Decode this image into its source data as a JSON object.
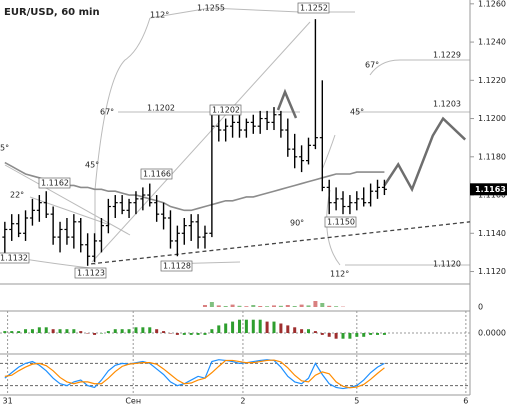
{
  "chart_data": {
    "type": "ohlc",
    "title": "EUR/USD, 60 min",
    "xlim": [
      -0.7,
      67.4
    ],
    "xticks": [
      {
        "value": 0.4,
        "label": "31"
      },
      {
        "value": 18.6,
        "label": "Сен"
      },
      {
        "value": 34.5,
        "label": "2"
      },
      {
        "value": 51,
        "label": "5"
      },
      {
        "value": 66.8,
        "label": "6"
      }
    ],
    "ylim": [
      1.1114,
      1.1262
    ],
    "yticks": [
      {
        "value": 1.126,
        "label": "1.1260"
      },
      {
        "value": 1.124,
        "label": "1.1240"
      },
      {
        "value": 1.122,
        "label": "1.1220"
      },
      {
        "value": 1.12,
        "label": "1.1200"
      },
      {
        "value": 1.118,
        "label": "1.1180"
      },
      {
        "value": 1.116,
        "label": "1.1160"
      },
      {
        "value": 1.114,
        "label": "1.1140"
      },
      {
        "value": 1.112,
        "label": "1.1120"
      }
    ],
    "open": [
      1.1138,
      1.1142,
      1.1145,
      1.114,
      1.1148,
      1.1152,
      1.1156,
      1.115,
      1.1138,
      1.1142,
      1.1138,
      1.1146,
      1.1134,
      1.1128,
      1.1136,
      1.1144,
      1.1154,
      1.1156,
      1.1152,
      1.1156,
      1.1158,
      1.116,
      1.1156,
      1.115,
      1.1148,
      1.1136,
      1.114,
      1.1144,
      1.1146,
      1.1138,
      1.114,
      1.1196,
      1.1194,
      1.1196,
      1.1198,
      1.1194,
      1.1198,
      1.1196,
      1.12,
      1.1198,
      1.1202,
      1.1194,
      1.1184,
      1.118,
      1.1178,
      1.1186,
      1.119,
      1.1164,
      1.1156,
      1.1158,
      1.1154,
      1.1156,
      1.1158,
      1.1156,
      1.1162,
      1.1164
    ],
    "high": [
      1.1146,
      1.115,
      1.115,
      1.1152,
      1.1158,
      1.116,
      1.1162,
      1.1154,
      1.1146,
      1.1148,
      1.115,
      1.1148,
      1.114,
      1.114,
      1.1148,
      1.1158,
      1.116,
      1.116,
      1.1158,
      1.1162,
      1.1164,
      1.1166,
      1.116,
      1.1156,
      1.1152,
      1.1144,
      1.1148,
      1.115,
      1.115,
      1.1144,
      1.1202,
      1.1202,
      1.12,
      1.1202,
      1.1202,
      1.12,
      1.1202,
      1.1204,
      1.1204,
      1.1206,
      1.1204,
      1.12,
      1.1192,
      1.1186,
      1.119,
      1.1252,
      1.122,
      1.1168,
      1.1164,
      1.1162,
      1.116,
      1.1162,
      1.1164,
      1.1166,
      1.1168,
      1.1168
    ],
    "low": [
      1.1128,
      1.1136,
      1.1138,
      1.1136,
      1.1144,
      1.1146,
      1.1148,
      1.1134,
      1.113,
      1.1134,
      1.1132,
      1.113,
      1.1123,
      1.1125,
      1.113,
      1.114,
      1.1148,
      1.115,
      1.1148,
      1.115,
      1.1152,
      1.1154,
      1.1146,
      1.1142,
      1.1132,
      1.1128,
      1.1134,
      1.1136,
      1.1132,
      1.1132,
      1.1138,
      1.1188,
      1.1188,
      1.119,
      1.119,
      1.119,
      1.1192,
      1.1192,
      1.1194,
      1.1194,
      1.119,
      1.118,
      1.1174,
      1.1172,
      1.1176,
      1.1184,
      1.1162,
      1.115,
      1.1152,
      1.115,
      1.115,
      1.1152,
      1.1154,
      1.1154,
      1.1158,
      1.116
    ],
    "close": [
      1.1142,
      1.1145,
      1.114,
      1.1148,
      1.1152,
      1.1156,
      1.115,
      1.1138,
      1.1142,
      1.1138,
      1.1146,
      1.1134,
      1.1128,
      1.1136,
      1.1144,
      1.1154,
      1.1156,
      1.1152,
      1.1156,
      1.1158,
      1.116,
      1.1156,
      1.115,
      1.1148,
      1.1136,
      1.114,
      1.1144,
      1.1146,
      1.1138,
      1.114,
      1.1196,
      1.1194,
      1.1196,
      1.1198,
      1.1194,
      1.1198,
      1.1196,
      1.12,
      1.1198,
      1.1202,
      1.1194,
      1.1184,
      1.118,
      1.1178,
      1.1186,
      1.119,
      1.1164,
      1.1156,
      1.1158,
      1.1154,
      1.1156,
      1.1158,
      1.1156,
      1.1162,
      1.1164,
      1.1163
    ],
    "last_price": 1.1163,
    "ma": {
      "color": "#8c8c8c",
      "values": [
        1.1177,
        1.1175,
        1.1173,
        1.1171,
        1.117,
        1.1169,
        1.1168,
        1.1167,
        1.1166,
        1.1165,
        1.1165,
        1.1164,
        1.1164,
        1.1163,
        1.1163,
        1.1162,
        1.1162,
        1.1161,
        1.116,
        1.116,
        1.1159,
        1.1158,
        1.1157,
        1.1156,
        1.1154,
        1.1153,
        1.1152,
        1.1152,
        1.1153,
        1.1154,
        1.1155,
        1.1156,
        1.1157,
        1.1157,
        1.1158,
        1.1159,
        1.1159,
        1.116,
        1.1161,
        1.1162,
        1.1163,
        1.1164,
        1.1165,
        1.1166,
        1.1167,
        1.1168,
        1.1169,
        1.117,
        1.1171,
        1.1171,
        1.1171,
        1.1172,
        1.1172,
        1.1172,
        1.1172,
        1.1172
      ]
    },
    "forecast": {
      "color": "#6e6e6e",
      "x": [
        55,
        57,
        59,
        62,
        63.5,
        66.7
      ],
      "values": [
        1.1165,
        1.1176,
        1.1163,
        1.1191,
        1.12,
        1.1189
      ]
    },
    "trendline": {
      "color": "#444444",
      "x": [
        12.5,
        67.4
      ],
      "values": [
        1.1124,
        1.1146
      ]
    },
    "annotations": [
      "112°",
      "1.1255",
      "1.1252",
      "67°",
      "1.1202",
      "1.1202",
      "45°",
      "1.1162",
      "1.1166",
      "22°",
      "5°",
      "1.1132",
      "1.1123",
      "1.1128",
      "1.1229",
      "67°",
      "45°",
      "1.1203",
      "90°",
      "1.1150",
      "112°",
      "1.1120"
    ],
    "volume": {
      "ylim": [
        0,
        100
      ],
      "yticks": [
        0
      ],
      "values": [
        0,
        0,
        0,
        0,
        0,
        0,
        0,
        0,
        0,
        0,
        0,
        0,
        0,
        0,
        0,
        0,
        0,
        0,
        0,
        0,
        0,
        0,
        0,
        0,
        0,
        0,
        0,
        0,
        0,
        10,
        25,
        8,
        5,
        12,
        6,
        4,
        10,
        5,
        4,
        8,
        6,
        10,
        5,
        12,
        8,
        30,
        20,
        6,
        4,
        2,
        0,
        0,
        0,
        0,
        0,
        0
      ]
    },
    "macd": {
      "ylim": [
        -0.001,
        0.001
      ],
      "yticks": [
        {
          "value": 0,
          "label": "0.0000"
        }
      ],
      "values": [
        0.0001,
        0.0001,
        0.0001,
        0.0002,
        0.0002,
        0.0003,
        0.0003,
        0.0002,
        0.0002,
        0.0002,
        0.0002,
        0.0001,
        0,
        -0.0001,
        0,
        0.0001,
        0.0002,
        0.0002,
        0.0002,
        0.0003,
        0.0003,
        0.0003,
        0.0002,
        0.0001,
        0,
        -0.0001,
        -0.0001,
        -0.0001,
        -0.0001,
        -0.0001,
        0.0002,
        0.0004,
        0.0005,
        0.0006,
        0.0007,
        0.0007,
        0.0007,
        0.0007,
        0.0006,
        0.0006,
        0.0005,
        0.0004,
        0.0003,
        0.0002,
        0.0002,
        0.0001,
        -0.0001,
        -0.0002,
        -0.0003,
        -0.0003,
        -0.0003,
        -0.0002,
        -0.0002,
        -0.0001,
        -0.0001,
        -0.0001
      ]
    },
    "stochastic": {
      "ylim": [
        0,
        100
      ],
      "levels": [
        20,
        80
      ],
      "series": [
        {
          "color": "#1e90ff",
          "values": [
            40,
            55,
            70,
            80,
            85,
            75,
            60,
            40,
            25,
            20,
            30,
            35,
            20,
            15,
            35,
            60,
            75,
            80,
            78,
            82,
            85,
            80,
            65,
            50,
            30,
            20,
            25,
            35,
            45,
            40,
            85,
            90,
            88,
            85,
            80,
            82,
            85,
            88,
            90,
            88,
            70,
            45,
            30,
            25,
            40,
            80,
            50,
            25,
            15,
            12,
            15,
            20,
            35,
            55,
            70,
            80
          ]
        },
        {
          "color": "#ff8c00",
          "values": [
            45,
            48,
            60,
            70,
            78,
            80,
            74,
            60,
            42,
            30,
            25,
            30,
            30,
            25,
            25,
            40,
            58,
            72,
            78,
            80,
            82,
            82,
            78,
            65,
            50,
            35,
            25,
            27,
            35,
            40,
            55,
            72,
            88,
            88,
            85,
            82,
            82,
            85,
            88,
            89,
            84,
            68,
            48,
            33,
            30,
            48,
            57,
            52,
            30,
            18,
            14,
            16,
            23,
            37,
            53,
            68
          ]
        }
      ]
    }
  }
}
